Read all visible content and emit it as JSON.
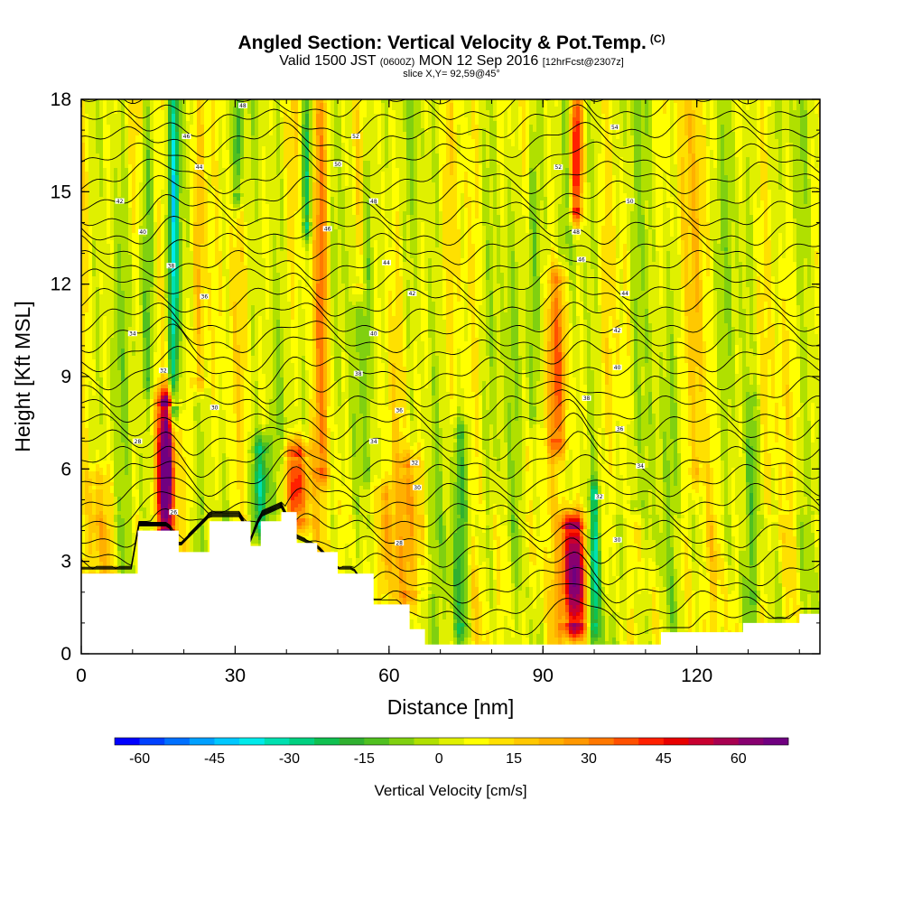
{
  "title": {
    "main": "Angled Section: Vertical Velocity & Pot.Temp.",
    "main_suffix": "(C)",
    "valid_prefix": "Valid 1500 JST",
    "valid_zulu": "(0600Z)",
    "valid_date": "MON 12 Sep 2016",
    "forecast": "[12hrFcst@2307z]",
    "slice": "slice X,Y= 92,59@45°"
  },
  "chart_data": {
    "type": "heatmap",
    "xlabel": "Distance [nm]",
    "ylabel": "Height [Kft MSL]",
    "xlim": [
      0,
      144
    ],
    "ylim": [
      0,
      18
    ],
    "x_ticks": [
      "0",
      "30",
      "60",
      "90",
      "120"
    ],
    "y_ticks": [
      "0",
      "3",
      "6",
      "9",
      "12",
      "15",
      "18"
    ],
    "colorbar": {
      "title": "Vertical Velocity [cm/s]",
      "ticks": [
        "-60",
        "-45",
        "-30",
        "-15",
        "0",
        "15",
        "30",
        "45",
        "60"
      ],
      "min": -65,
      "max": 70,
      "step": 5,
      "colors": [
        "#0000ff",
        "#0040ff",
        "#0070ff",
        "#00a0ff",
        "#00c8ff",
        "#00eaea",
        "#00e0b0",
        "#00d080",
        "#10c050",
        "#30b030",
        "#50c020",
        "#80d010",
        "#b0e000",
        "#e0f000",
        "#ffff00",
        "#ffe000",
        "#ffc800",
        "#ffb000",
        "#ff9800",
        "#ff7800",
        "#ff5000",
        "#ff2000",
        "#e80000",
        "#c80030",
        "#a80050",
        "#880070",
        "#700080"
      ]
    },
    "terrain_kft": [
      [
        0,
        2.6
      ],
      [
        10,
        2.6
      ],
      [
        11,
        4.0
      ],
      [
        16,
        4.0
      ],
      [
        17,
        4.0
      ],
      [
        19,
        3.3
      ],
      [
        25,
        4.3
      ],
      [
        31,
        4.3
      ],
      [
        33,
        3.5
      ],
      [
        35,
        4.3
      ],
      [
        39,
        4.6
      ],
      [
        42,
        3.6
      ],
      [
        46,
        3.3
      ],
      [
        50,
        2.6
      ],
      [
        53,
        2.6
      ],
      [
        57,
        1.6
      ],
      [
        62,
        1.6
      ],
      [
        64,
        0.8
      ],
      [
        67,
        0.3
      ],
      [
        110,
        0.3
      ],
      [
        113,
        0.7
      ],
      [
        127,
        0.7
      ],
      [
        129,
        1.0
      ],
      [
        138,
        1.0
      ],
      [
        140,
        1.3
      ],
      [
        144,
        1.3
      ]
    ],
    "updrafts": [
      {
        "x": 16.5,
        "z0": 4.0,
        "z1": 8.0,
        "peak": 68,
        "w": 1.6
      },
      {
        "x": 42,
        "z0": 4.4,
        "z1": 6.4,
        "peak": 42,
        "w": 2.5
      },
      {
        "x": 96,
        "z0": 1.0,
        "z1": 4.0,
        "peak": 60,
        "w": 2.5
      },
      {
        "x": 96.5,
        "z0": 14.5,
        "z1": 18.0,
        "peak": 50,
        "w": 1.2
      },
      {
        "x": 47,
        "z0": 6.0,
        "z1": 18.0,
        "peak": 26,
        "w": 1.5
      },
      {
        "x": 23,
        "z0": 9.0,
        "z1": 18.0,
        "peak": 25,
        "w": 1.3
      },
      {
        "x": 93,
        "z0": 7.0,
        "z1": 12.0,
        "peak": 28,
        "w": 2.0
      },
      {
        "x": 64,
        "z0": 2.0,
        "z1": 6.0,
        "peak": 24,
        "w": 2.0
      },
      {
        "x": 59,
        "z0": 1.5,
        "z1": 5.0,
        "peak": 20,
        "w": 1.4
      },
      {
        "x": 54,
        "z0": 12.0,
        "z1": 18.0,
        "peak": 20,
        "w": 1.2
      },
      {
        "x": 120,
        "z0": 6.0,
        "z1": 18.0,
        "peak": 16,
        "w": 1.5
      },
      {
        "x": 3,
        "z0": 2.6,
        "z1": 5.5,
        "peak": 15,
        "w": 2.5
      }
    ],
    "downdrafts": [
      {
        "x": 18,
        "z0": 8.0,
        "z1": 18.0,
        "peak": -36,
        "w": 1.0
      },
      {
        "x": 35,
        "z0": 4.3,
        "z1": 6.5,
        "peak": -32,
        "w": 1.6
      },
      {
        "x": 44,
        "z0": 14.0,
        "z1": 18.0,
        "peak": -32,
        "w": 0.9
      },
      {
        "x": 30.5,
        "z0": 15.0,
        "z1": 18.0,
        "peak": -28,
        "w": 0.9
      },
      {
        "x": 100,
        "z0": 1.0,
        "z1": 5.0,
        "peak": -30,
        "w": 0.9
      },
      {
        "x": 13,
        "z0": 9.0,
        "z1": 18.0,
        "peak": -14,
        "w": 1.2
      },
      {
        "x": 56,
        "z0": 6.0,
        "z1": 18.0,
        "peak": -15,
        "w": 1.2
      },
      {
        "x": 74,
        "z0": 1.0,
        "z1": 7.0,
        "peak": -18,
        "w": 1.5
      },
      {
        "x": 88,
        "z0": 8.0,
        "z1": 18.0,
        "peak": -16,
        "w": 1.2
      },
      {
        "x": 108,
        "z0": 5.0,
        "z1": 18.0,
        "peak": -14,
        "w": 1.2
      },
      {
        "x": 131,
        "z0": 2.0,
        "z1": 8.0,
        "peak": -12,
        "w": 1.5
      }
    ],
    "isentropes": {
      "count": 33,
      "bottom_kft": 1.0,
      "top_kft": 19.5,
      "wave_crest_x": [
        17,
        42,
        96
      ]
    },
    "isentrope_labels": [
      {
        "x": 18,
        "z": 4.6,
        "text": "26"
      },
      {
        "x": 11,
        "z": 6.9,
        "text": "28"
      },
      {
        "x": 26,
        "z": 8.0,
        "text": "30"
      },
      {
        "x": 16,
        "z": 9.2,
        "text": "32"
      },
      {
        "x": 10,
        "z": 10.4,
        "text": "34"
      },
      {
        "x": 24,
        "z": 11.6,
        "text": "36"
      },
      {
        "x": 17.5,
        "z": 12.6,
        "text": "38"
      },
      {
        "x": 12,
        "z": 13.7,
        "text": "40"
      },
      {
        "x": 7.5,
        "z": 14.7,
        "text": "42"
      },
      {
        "x": 23,
        "z": 15.8,
        "text": "44"
      },
      {
        "x": 20.5,
        "z": 16.8,
        "text": "46"
      },
      {
        "x": 31.5,
        "z": 17.8,
        "text": "48"
      },
      {
        "x": 62,
        "z": 3.6,
        "text": "28"
      },
      {
        "x": 65.5,
        "z": 5.4,
        "text": "30"
      },
      {
        "x": 65,
        "z": 6.2,
        "text": "32"
      },
      {
        "x": 57,
        "z": 6.9,
        "text": "34"
      },
      {
        "x": 62,
        "z": 7.9,
        "text": "36"
      },
      {
        "x": 54,
        "z": 9.1,
        "text": "38"
      },
      {
        "x": 57,
        "z": 10.4,
        "text": "40"
      },
      {
        "x": 64.5,
        "z": 11.7,
        "text": "42"
      },
      {
        "x": 59.5,
        "z": 12.7,
        "text": "44"
      },
      {
        "x": 48,
        "z": 13.8,
        "text": "46"
      },
      {
        "x": 57,
        "z": 14.7,
        "text": "48"
      },
      {
        "x": 50,
        "z": 15.9,
        "text": "50"
      },
      {
        "x": 53.5,
        "z": 16.8,
        "text": "52"
      },
      {
        "x": 104.5,
        "z": 3.7,
        "text": "30"
      },
      {
        "x": 101,
        "z": 5.1,
        "text": "32"
      },
      {
        "x": 109,
        "z": 6.1,
        "text": "34"
      },
      {
        "x": 105,
        "z": 7.3,
        "text": "36"
      },
      {
        "x": 98.5,
        "z": 8.3,
        "text": "38"
      },
      {
        "x": 104.5,
        "z": 9.3,
        "text": "40"
      },
      {
        "x": 104.5,
        "z": 10.5,
        "text": "42"
      },
      {
        "x": 106,
        "z": 11.7,
        "text": "44"
      },
      {
        "x": 97.5,
        "z": 12.8,
        "text": "46"
      },
      {
        "x": 96.5,
        "z": 13.7,
        "text": "48"
      },
      {
        "x": 107,
        "z": 14.7,
        "text": "50"
      },
      {
        "x": 93,
        "z": 15.8,
        "text": "52"
      },
      {
        "x": 104,
        "z": 17.1,
        "text": "54"
      }
    ]
  }
}
